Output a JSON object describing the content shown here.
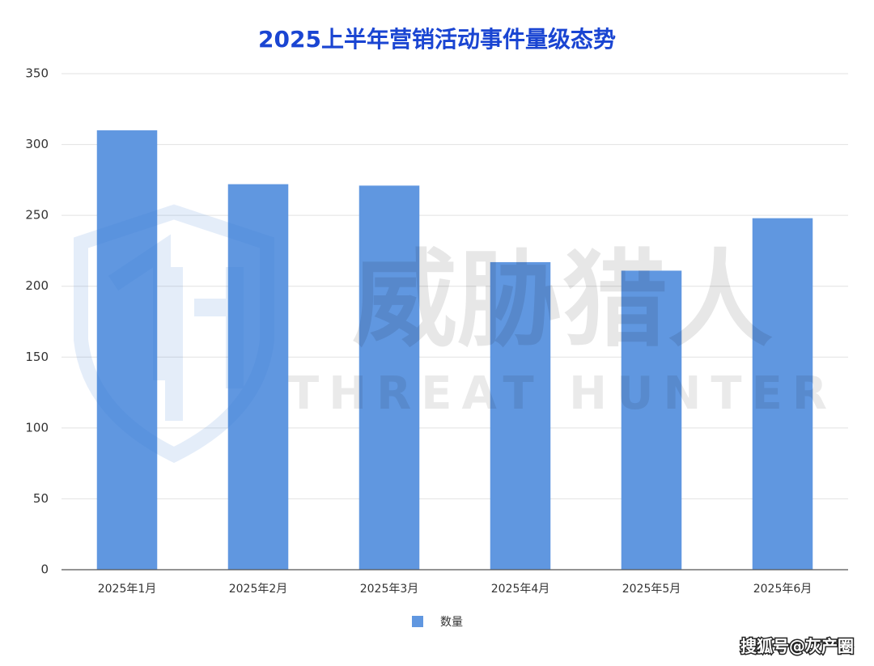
{
  "chart_data": {
    "type": "bar",
    "title": "2025上半年营销活动事件量级态势",
    "categories": [
      "2025年1月",
      "2025年2月",
      "2025年3月",
      "2025年4月",
      "2025年5月",
      "2025年6月"
    ],
    "series": [
      {
        "name": "数量",
        "color": "#6097e0",
        "values": [
          310,
          272,
          271,
          217,
          211,
          248
        ]
      }
    ],
    "ylim": [
      0,
      350
    ],
    "yticks": [
      0,
      50,
      100,
      150,
      200,
      250,
      300,
      350
    ],
    "grid": true,
    "legend": "bottom",
    "watermark": [
      "威胁猎人",
      "THREAT HUNTER"
    ],
    "credit": "搜狐号@灰产圈"
  }
}
